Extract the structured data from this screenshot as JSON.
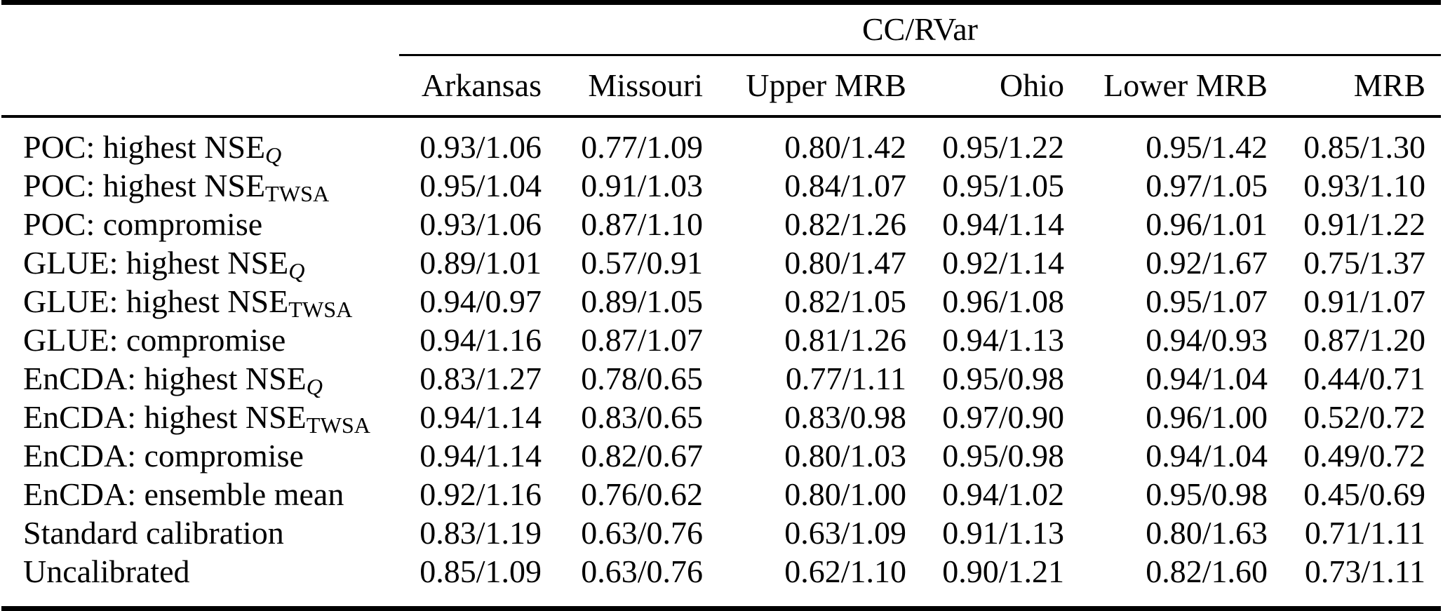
{
  "page": {
    "background_color": "#ffffff",
    "text_color": "#000000"
  },
  "table": {
    "group_header": "CC/RVar",
    "columns": [
      "Arkansas",
      "Missouri",
      "Upper MRB",
      "Ohio",
      "Lower MRB",
      "MRB"
    ],
    "rows": [
      {
        "label": "POC: highest NSE",
        "label_sub": "Q",
        "sub_italic": true,
        "values": [
          "0.93/1.06",
          "0.77/1.09",
          "0.80/1.42",
          "0.95/1.22",
          "0.95/1.42",
          "0.85/1.30"
        ]
      },
      {
        "label": "POC: highest NSE",
        "label_sub": "TWSA",
        "values": [
          "0.95/1.04",
          "0.91/1.03",
          "0.84/1.07",
          "0.95/1.05",
          "0.97/1.05",
          "0.93/1.10"
        ]
      },
      {
        "label": "POC: compromise",
        "values": [
          "0.93/1.06",
          "0.87/1.10",
          "0.82/1.26",
          "0.94/1.14",
          "0.96/1.01",
          "0.91/1.22"
        ]
      },
      {
        "label": "GLUE: highest NSE",
        "label_sub": "Q",
        "sub_italic": true,
        "values": [
          "0.89/1.01",
          "0.57/0.91",
          "0.80/1.47",
          "0.92/1.14",
          "0.92/1.67",
          "0.75/1.37"
        ]
      },
      {
        "label": "GLUE: highest NSE",
        "label_sub": "TWSA",
        "values": [
          "0.94/0.97",
          "0.89/1.05",
          "0.82/1.05",
          "0.96/1.08",
          "0.95/1.07",
          "0.91/1.07"
        ]
      },
      {
        "label": "GLUE: compromise",
        "values": [
          "0.94/1.16",
          "0.87/1.07",
          "0.81/1.26",
          "0.94/1.13",
          "0.94/0.93",
          "0.87/1.20"
        ]
      },
      {
        "label": "EnCDA: highest NSE",
        "label_sub": "Q",
        "sub_italic": true,
        "values": [
          "0.83/1.27",
          "0.78/0.65",
          "0.77/1.11",
          "0.95/0.98",
          "0.94/1.04",
          "0.44/0.71"
        ]
      },
      {
        "label": "EnCDA: highest NSE",
        "label_sub": "TWSA",
        "values": [
          "0.94/1.14",
          "0.83/0.65",
          "0.83/0.98",
          "0.97/0.90",
          "0.96/1.00",
          "0.52/0.72"
        ]
      },
      {
        "label": "EnCDA: compromise",
        "values": [
          "0.94/1.14",
          "0.82/0.67",
          "0.80/1.03",
          "0.95/0.98",
          "0.94/1.04",
          "0.49/0.72"
        ]
      },
      {
        "label": "EnCDA: ensemble mean",
        "values": [
          "0.92/1.16",
          "0.76/0.62",
          "0.80/1.00",
          "0.94/1.02",
          "0.95/0.98",
          "0.45/0.69"
        ]
      },
      {
        "label": "Standard calibration",
        "values": [
          "0.83/1.19",
          "0.63/0.76",
          "0.63/1.09",
          "0.91/1.13",
          "0.80/1.63",
          "0.71/1.11"
        ]
      },
      {
        "label": "Uncalibrated",
        "values": [
          "0.85/1.09",
          "0.63/0.76",
          "0.62/1.10",
          "0.90/1.21",
          "0.82/1.60",
          "0.73/1.11"
        ]
      }
    ]
  }
}
